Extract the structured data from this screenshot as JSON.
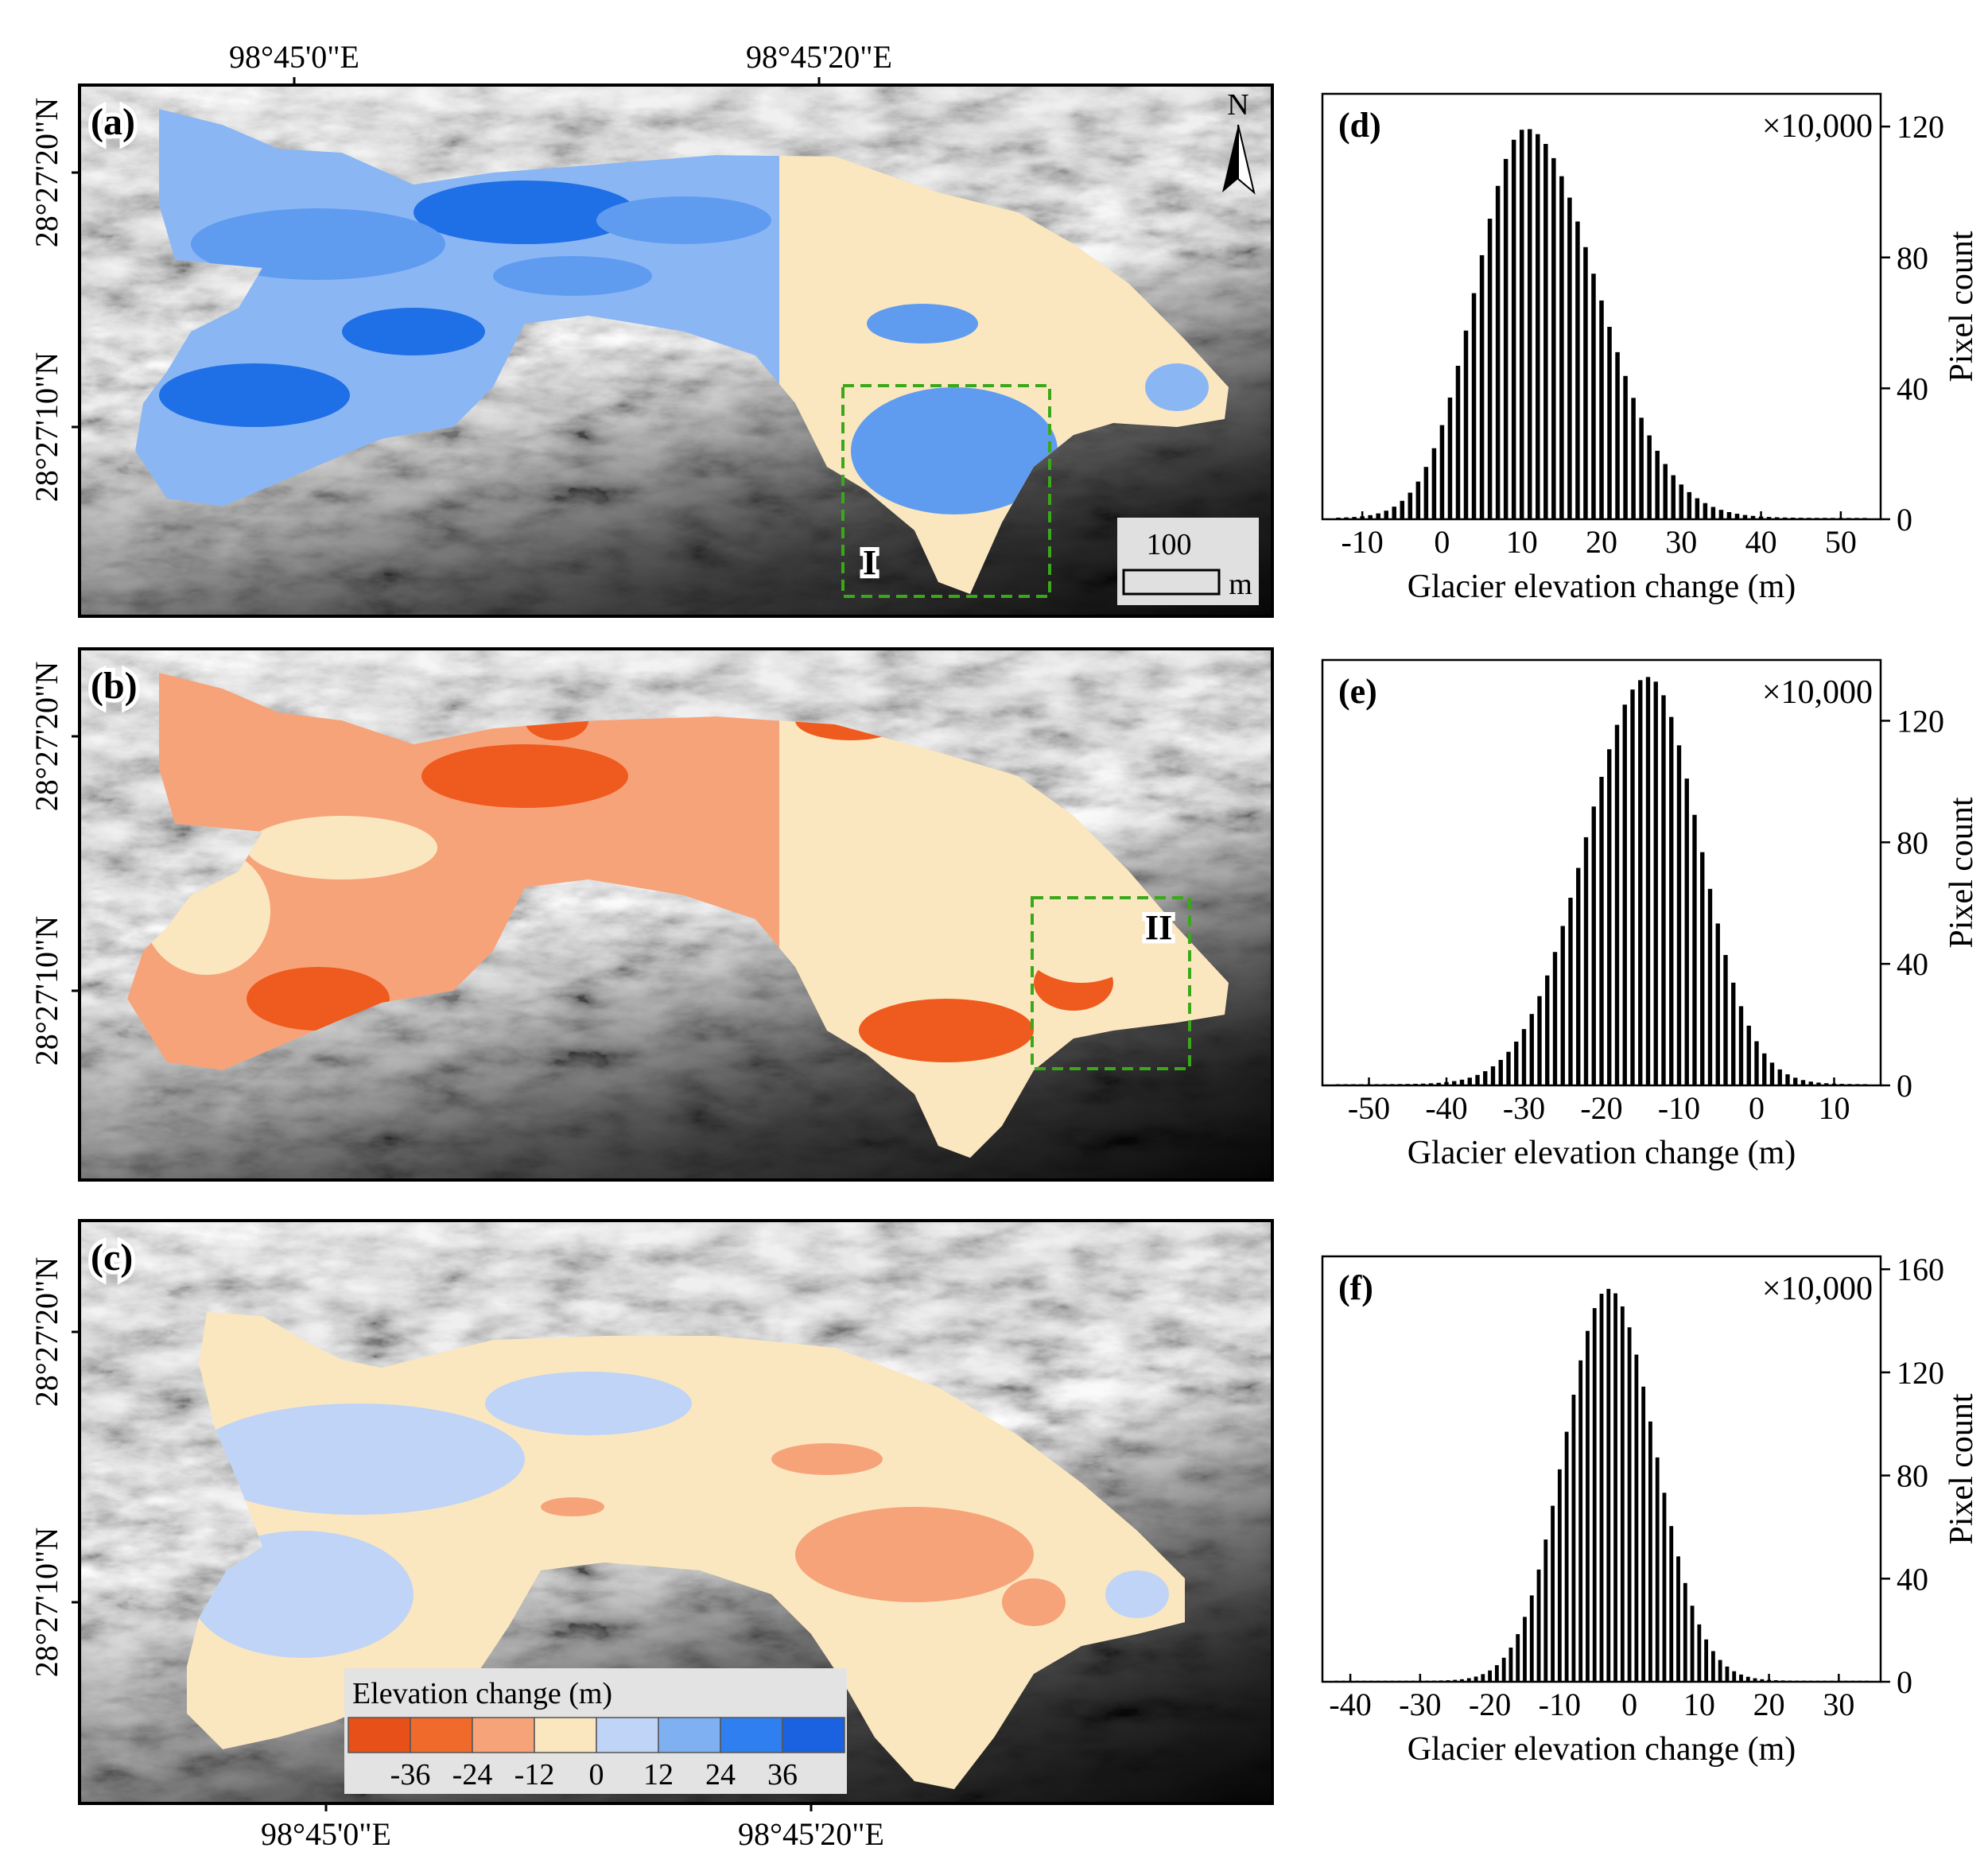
{
  "maps": [
    {
      "panel": "(a)",
      "lon_top": [
        "98°45'0\"E",
        "98°45'20\"E"
      ],
      "lat": [
        "28°27'20\"N",
        "28°27'10\"N"
      ],
      "zone_label": "I",
      "scale_value": "100",
      "scale_unit": "m",
      "north_label": "N",
      "fill": {
        "dominant": "#8bb6f4",
        "secondary": "#5f9cf0",
        "dark": "#1f6fe6",
        "tail": "#fbe7bf"
      }
    },
    {
      "panel": "(b)",
      "lat": [
        "28°27'20\"N",
        "28°27'10\"N"
      ],
      "zone_label": "II",
      "fill": {
        "dominant": "#f7a37a",
        "secondary": "#fbe7bf",
        "dark": "#ef5a1f",
        "tail": "#fbe7bf"
      }
    },
    {
      "panel": "(c)",
      "lat": [
        "28°27'20\"N",
        "28°27'10\"N"
      ],
      "lon_bottom": [
        "98°45'0\"E",
        "98°45'20\"E"
      ],
      "fill": {
        "dominant": "#fbe7bf",
        "secondary": "#bfd4f7",
        "dark": "#f7a37a",
        "tail": "#fbe7bf"
      }
    }
  ],
  "legend": {
    "title": "Elevation change (m)",
    "colors": [
      "#e8501a",
      "#f06a2c",
      "#f7a37a",
      "#fbe7bf",
      "#bfd4f7",
      "#7fb0f2",
      "#2f7ff0",
      "#1a62e0"
    ],
    "ticks": [
      "-36",
      "-24",
      "-12",
      "0",
      "12",
      "24",
      "36"
    ]
  },
  "chart_data": [
    {
      "type": "bar",
      "panel": "(d)",
      "xlabel": "Glacier elevation change (m)",
      "ylabel": "Pixel count",
      "multiplier": "×10,000",
      "xlim": [
        -15,
        55
      ],
      "ylim": [
        0,
        130
      ],
      "xticks": [
        -10,
        0,
        10,
        20,
        30,
        40,
        50
      ],
      "yticks": [
        0,
        40,
        80,
        120
      ],
      "bin_width": 1,
      "peak_x": 10.5,
      "peak_y": 119,
      "sigma_left": 6.2,
      "sigma_right": 8.8
    },
    {
      "type": "bar",
      "panel": "(e)",
      "xlabel": "Glacier elevation change (m)",
      "ylabel": "Pixel count",
      "multiplier": "×10,000",
      "xlim": [
        -56,
        16
      ],
      "ylim": [
        0,
        140
      ],
      "xticks": [
        -50,
        -40,
        -30,
        -20,
        -10,
        0,
        10
      ],
      "yticks": [
        0,
        40,
        80,
        120
      ],
      "bin_width": 1,
      "peak_x": -14,
      "peak_y": 134,
      "sigma_left": 8.0,
      "sigma_right": 6.6
    },
    {
      "type": "bar",
      "panel": "(f)",
      "xlabel": "Glacier elevation change (m)",
      "ylabel": "Pixel count",
      "multiplier": "×10,000",
      "xlim": [
        -44,
        36
      ],
      "ylim": [
        0,
        165
      ],
      "xticks": [
        -40,
        -30,
        -20,
        -10,
        0,
        10,
        20,
        30
      ],
      "yticks": [
        0,
        40,
        80,
        120,
        160
      ],
      "bin_width": 1,
      "peak_x": -3,
      "peak_y": 152,
      "sigma_left": 6.3,
      "sigma_right": 6.6
    }
  ]
}
